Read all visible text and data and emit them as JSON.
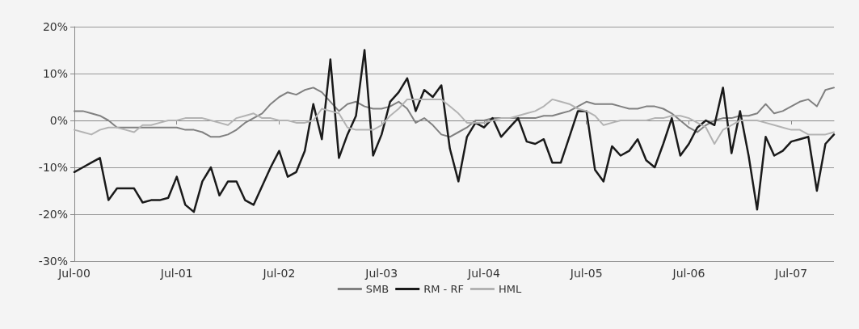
{
  "chart_data": {
    "type": "line",
    "categories": [
      "Jul-00",
      null,
      null,
      null,
      null,
      null,
      null,
      null,
      null,
      null,
      null,
      null,
      "Jul-01",
      null,
      null,
      null,
      null,
      null,
      null,
      null,
      null,
      null,
      null,
      null,
      "Jul-02",
      null,
      null,
      null,
      null,
      null,
      null,
      null,
      null,
      null,
      null,
      null,
      "Jul-03",
      null,
      null,
      null,
      null,
      null,
      null,
      null,
      null,
      null,
      null,
      null,
      "Jul-04",
      null,
      null,
      null,
      null,
      null,
      null,
      null,
      null,
      null,
      null,
      null,
      "Jul-05",
      null,
      null,
      null,
      null,
      null,
      null,
      null,
      null,
      null,
      null,
      null,
      "Jul-06",
      null,
      null,
      null,
      null,
      null,
      null,
      null,
      null,
      null,
      null,
      null,
      "Jul-07",
      null,
      null,
      null,
      null,
      null
    ],
    "series": [
      {
        "name": "SMB",
        "color": "#808080",
        "values": [
          2,
          2,
          1.5,
          1,
          0,
          -1.5,
          -1.5,
          -1.5,
          -1.5,
          -1.5,
          -1.5,
          -1.5,
          -1.5,
          -2,
          -2,
          -2.5,
          -3.5,
          -3.5,
          -3,
          -2,
          -0.5,
          0.5,
          1.5,
          3.5,
          5,
          6,
          5.5,
          6.5,
          7,
          6,
          4,
          2,
          3.5,
          4,
          3,
          2.5,
          2.5,
          3,
          4,
          2.5,
          -0.5,
          0.5,
          -1,
          -3,
          -3.5,
          -2.5,
          -1.5,
          0,
          0,
          0.5,
          0.5,
          0.5,
          0.5,
          0.5,
          0.5,
          1,
          1,
          1.5,
          2,
          3,
          4,
          3.5,
          3.5,
          3.5,
          3,
          2.5,
          2.5,
          3,
          3,
          2.5,
          1.5,
          0,
          -1.5,
          -2.5,
          -1,
          0,
          0.5,
          0.5,
          1,
          1,
          1.5,
          3.5,
          1.5,
          2,
          3,
          4,
          4.5,
          3,
          6.5,
          7
        ]
      },
      {
        "name": "RM - RF",
        "color": "#1a1a1a",
        "values": [
          -11,
          -10,
          -9,
          -8,
          -17,
          -14.5,
          -14.5,
          -14.5,
          -17.5,
          -17,
          -17,
          -16.5,
          -12,
          -18,
          -19.5,
          -13,
          -10,
          -16,
          -13,
          -13,
          -17,
          -18,
          -14,
          -10,
          -6.5,
          -12,
          -11,
          -6.5,
          3.5,
          -4,
          13,
          -8,
          -3,
          1,
          15,
          -7.5,
          -3,
          4,
          6,
          9,
          2,
          6.5,
          5,
          7.5,
          -6,
          -13,
          -3.5,
          -0.5,
          -1.5,
          0.5,
          -3.5,
          -1.5,
          0.5,
          -4.5,
          -5,
          -4,
          -9,
          -9,
          -3.5,
          2,
          2,
          -10.5,
          -13,
          -5.5,
          -7.5,
          -6.5,
          -4,
          -8.5,
          -10,
          -5,
          0.5,
          -7.5,
          -5,
          -1.5,
          0,
          -1,
          7,
          -7,
          2,
          -7.5,
          -19,
          -3.5,
          -7.5,
          -6.5,
          -4.5,
          -4,
          -3.5,
          -15,
          -5,
          -3
        ]
      },
      {
        "name": "HML",
        "color": "#b3b3b3",
        "values": [
          -2,
          -2.5,
          -3,
          -2,
          -1.5,
          -1.5,
          -2,
          -2.5,
          -1,
          -1,
          -0.5,
          0,
          0,
          0.5,
          0.5,
          0.5,
          0,
          -0.5,
          -1,
          0.5,
          1,
          1.5,
          0.5,
          0.5,
          0,
          0,
          -0.5,
          -0.5,
          0,
          2.5,
          2,
          1.5,
          -1.5,
          -2,
          -2,
          -2,
          -1,
          1,
          2.5,
          4.5,
          4.5,
          4.5,
          4.5,
          4.5,
          3,
          1.5,
          -0.5,
          -0.5,
          -0.5,
          0,
          0.5,
          0.5,
          1,
          1.5,
          2,
          3,
          4.5,
          4,
          3.5,
          2.5,
          2,
          1,
          -1,
          -0.5,
          0,
          0,
          0,
          0,
          0.5,
          0.5,
          1,
          1,
          0.5,
          -0.5,
          -1.5,
          -5,
          -2,
          -1,
          0,
          0,
          0,
          -0.5,
          -1,
          -1.5,
          -2,
          -2,
          -3,
          -3,
          -3,
          -2.5
        ]
      }
    ],
    "ylim": [
      -30,
      20
    ],
    "yticks": [
      {
        "value": -30,
        "label": "-30%"
      },
      {
        "value": -20,
        "label": "-20%"
      },
      {
        "value": -10,
        "label": "-10%"
      },
      {
        "value": 0,
        "label": "0%"
      },
      {
        "value": 10,
        "label": "10%"
      },
      {
        "value": 20,
        "label": "20%"
      }
    ],
    "grid": "y",
    "legend": "bottom",
    "marker": "none",
    "line_style": "solid"
  }
}
